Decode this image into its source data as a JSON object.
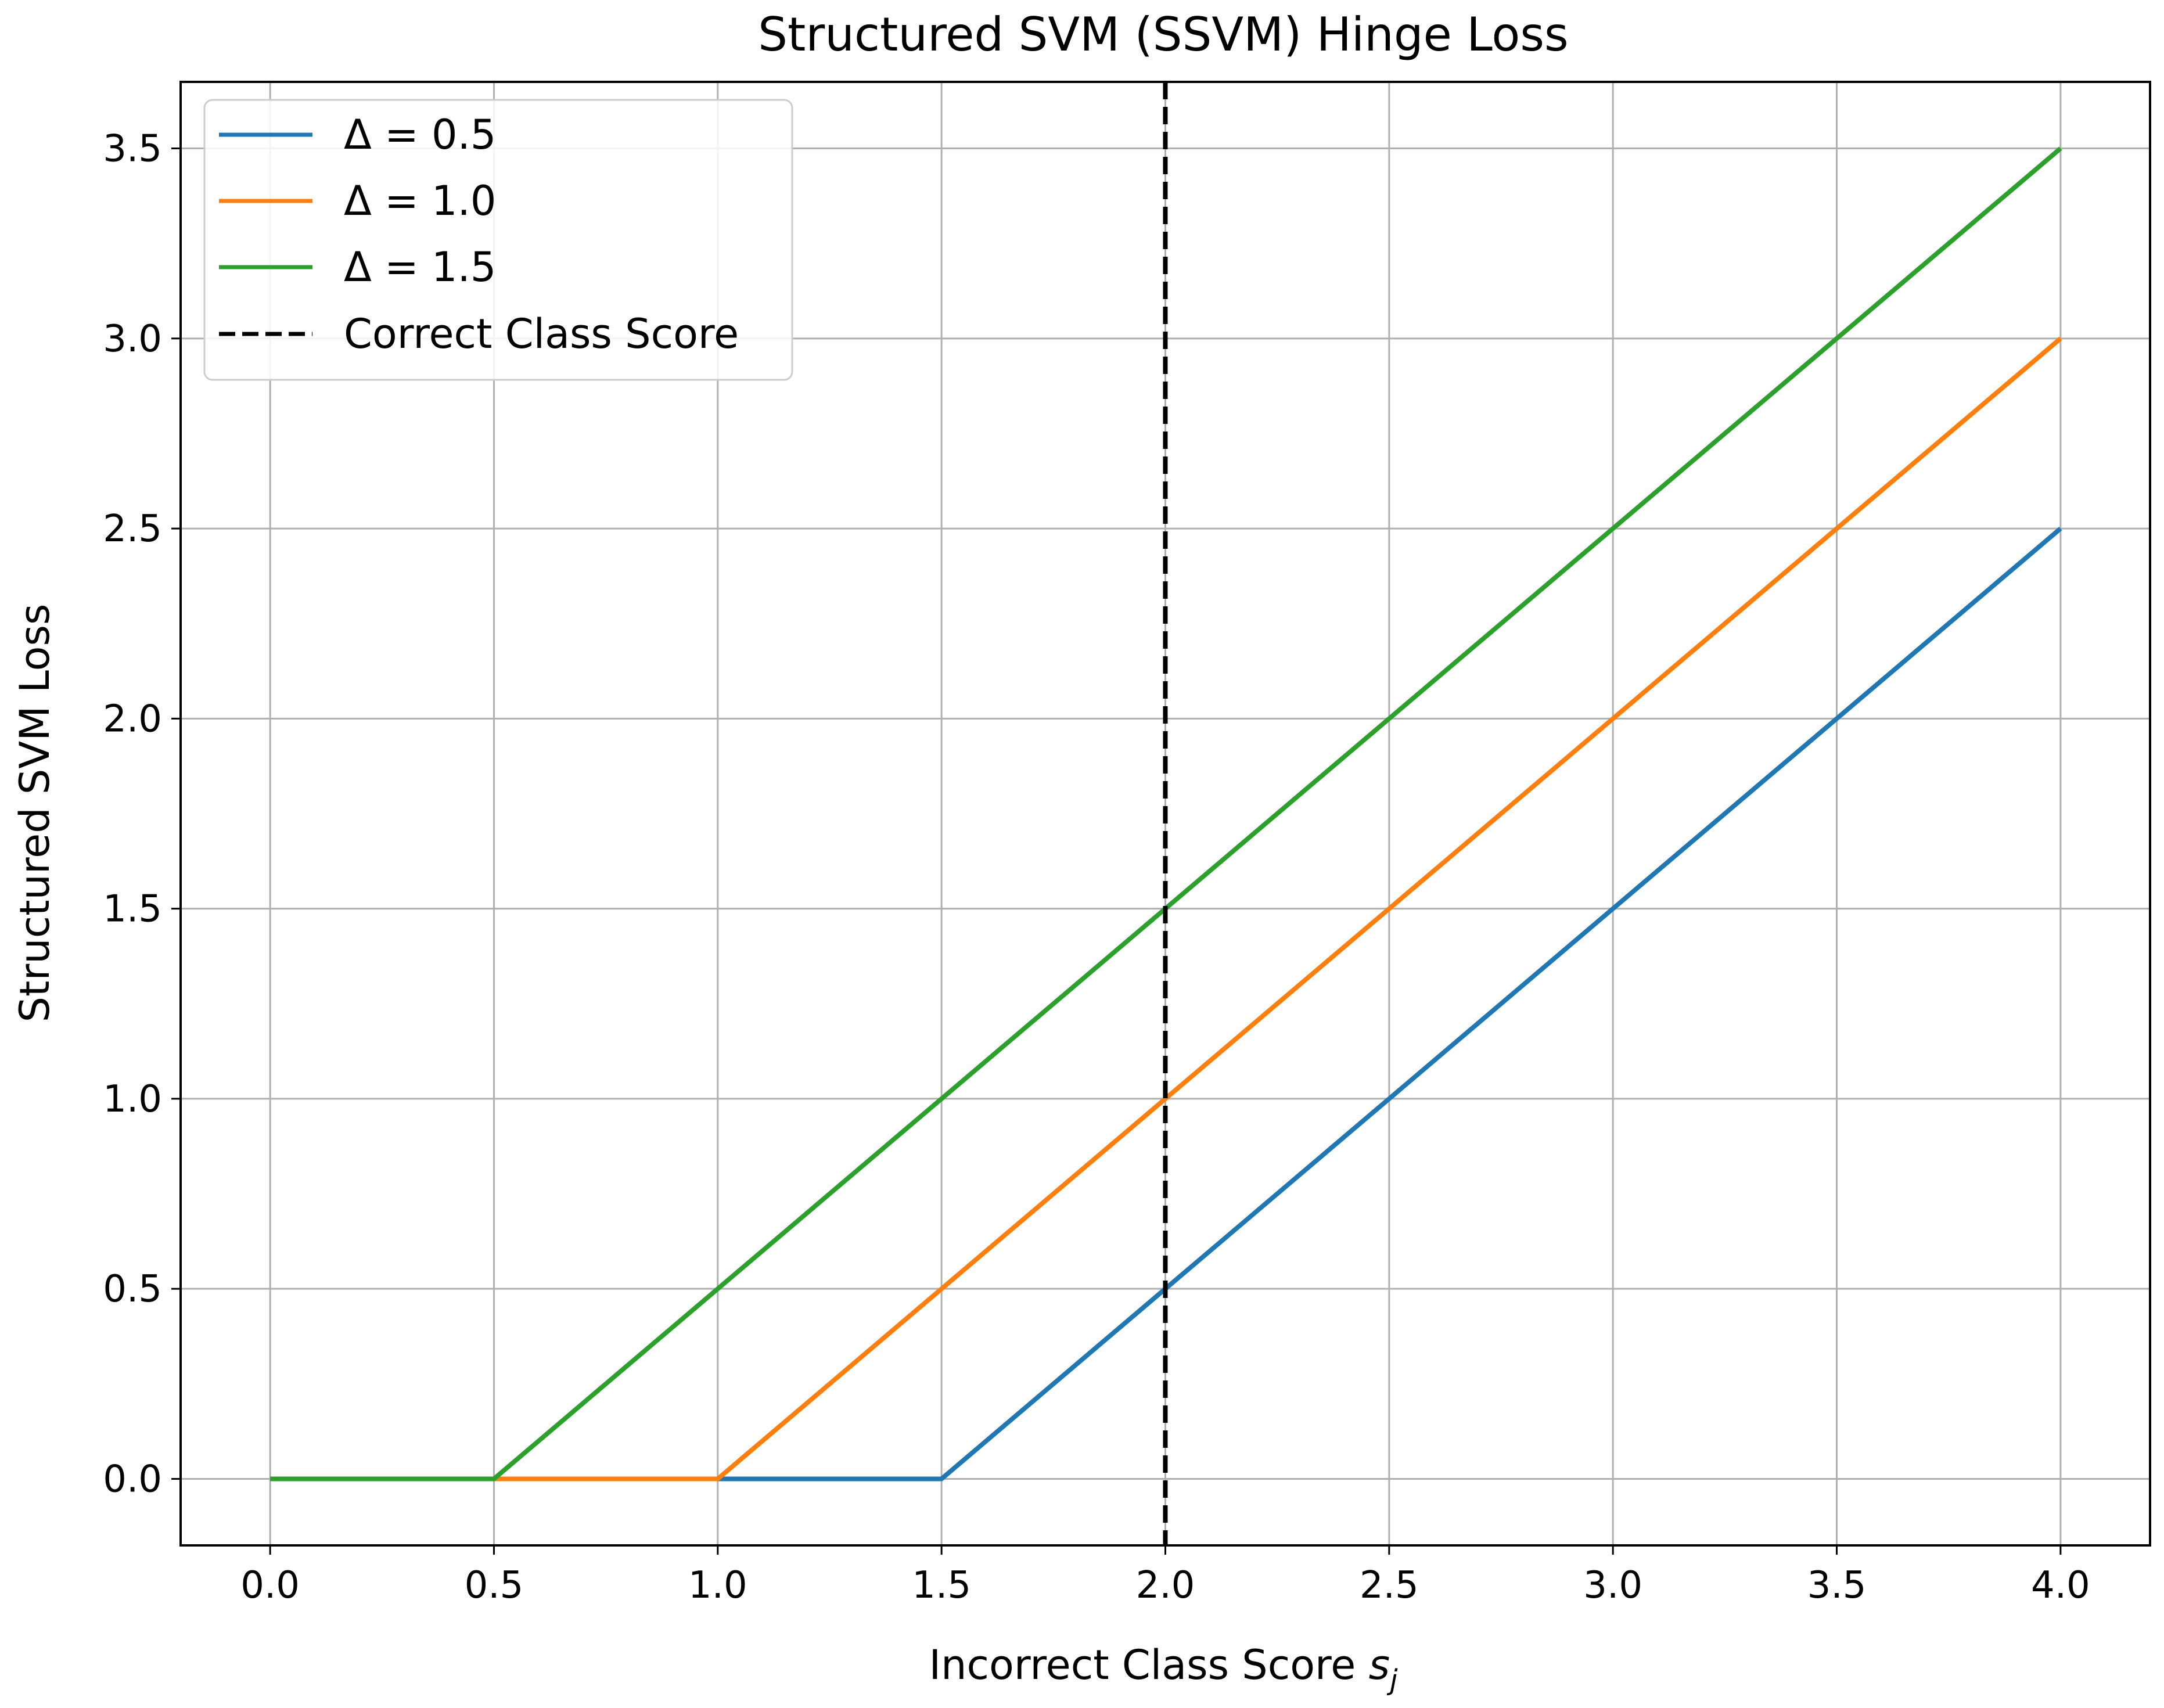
{
  "chart_data": {
    "type": "line",
    "title": "Structured SVM (SSVM) Hinge Loss",
    "xlabel": "Incorrect Class Score",
    "xlabel_symbol": "s",
    "xlabel_subscript": "j",
    "ylabel": "Structured SVM Loss",
    "xlim": [
      -0.2,
      4.2
    ],
    "ylim": [
      -0.175,
      3.675
    ],
    "xticks": [
      0.0,
      0.5,
      1.0,
      1.5,
      2.0,
      2.5,
      3.0,
      3.5,
      4.0
    ],
    "yticks": [
      0.0,
      0.5,
      1.0,
      1.5,
      2.0,
      2.5,
      3.0,
      3.5
    ],
    "xtick_labels": [
      "0.0",
      "0.5",
      "1.0",
      "1.5",
      "2.0",
      "2.5",
      "3.0",
      "3.5",
      "4.0"
    ],
    "ytick_labels": [
      "0.0",
      "0.5",
      "1.0",
      "1.5",
      "2.0",
      "2.5",
      "3.0",
      "3.5"
    ],
    "grid": true,
    "legend_position": "top-left",
    "series": [
      {
        "name": "Δ = 0.5",
        "color": "#1f77b4",
        "x": [
          0,
          0.5,
          1.0,
          1.5,
          2.0,
          2.5,
          3.0,
          3.5,
          4.0
        ],
        "y": [
          0,
          0,
          0,
          0,
          0.5,
          1.0,
          1.5,
          2.0,
          2.5
        ]
      },
      {
        "name": "Δ = 1.0",
        "color": "#ff7f0e",
        "x": [
          0,
          0.5,
          1.0,
          1.5,
          2.0,
          2.5,
          3.0,
          3.5,
          4.0
        ],
        "y": [
          0,
          0,
          0,
          0.5,
          1.0,
          1.5,
          2.0,
          2.5,
          3.0
        ]
      },
      {
        "name": "Δ = 1.5",
        "color": "#2ca02c",
        "x": [
          0,
          0.5,
          1.0,
          1.5,
          2.0,
          2.5,
          3.0,
          3.5,
          4.0
        ],
        "y": [
          0,
          0,
          0.5,
          1.0,
          1.5,
          2.0,
          2.5,
          3.0,
          3.5
        ]
      }
    ],
    "vline": {
      "name": "Correct Class Score",
      "x": 2.0,
      "color": "#000000",
      "style": "dashed"
    }
  }
}
